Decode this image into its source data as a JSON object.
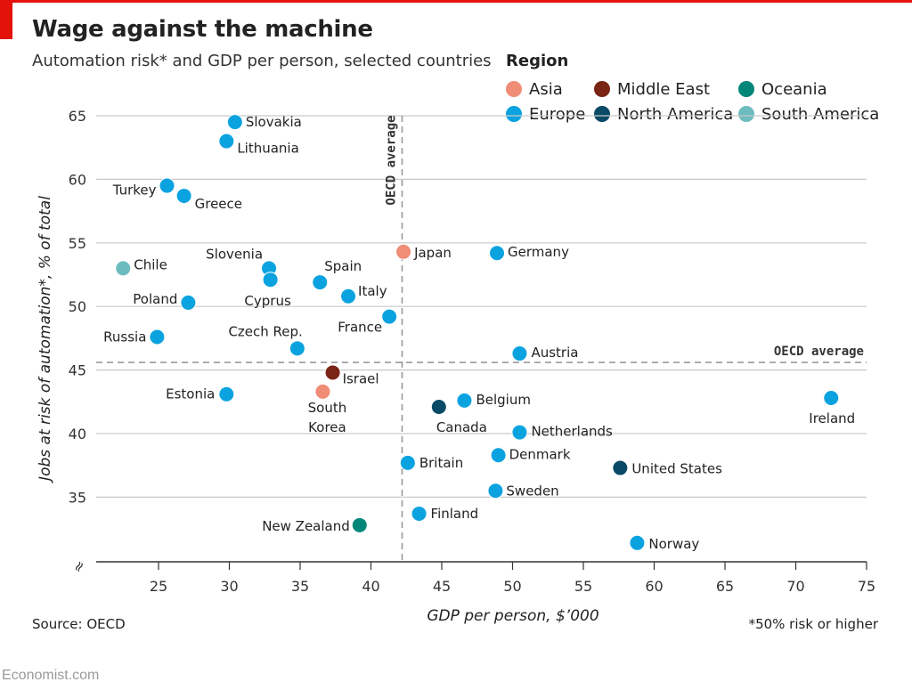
{
  "header": {
    "title": "Wage against the machine",
    "subtitle": "Automation risk* and GDP per person, selected countries"
  },
  "legend": {
    "title": "Region",
    "items": [
      {
        "label": "Asia",
        "color": "#ef8d77"
      },
      {
        "label": "Middle East",
        "color": "#7a2414"
      },
      {
        "label": "Oceania",
        "color": "#00877a"
      },
      {
        "label": "Europe",
        "color": "#0aa3e0"
      },
      {
        "label": "North America",
        "color": "#0a4a66"
      },
      {
        "label": "South America",
        "color": "#6cbcbf"
      }
    ]
  },
  "footer": {
    "source": "Source: OECD",
    "footnote": "*50% risk or higher",
    "brand": "Economist.com"
  },
  "chart_data": {
    "type": "scatter",
    "xlabel": "GDP per person, $’000",
    "ylabel": "Jobs at risk of automation*, % of total",
    "xlim": [
      22,
      75
    ],
    "ylim": [
      30,
      66
    ],
    "x_ticks": [
      "25",
      "30",
      "35",
      "40",
      "45",
      "50",
      "55",
      "60",
      "65",
      "70",
      "75"
    ],
    "y_ticks": [
      "35",
      "40",
      "45",
      "50",
      "55",
      "60",
      "65"
    ],
    "y_break_symbol": "≈",
    "grid": "horizontal",
    "reference_lines": [
      {
        "axis": "x",
        "value": 42.2,
        "label": "OECD average"
      },
      {
        "axis": "y",
        "value": 45.6,
        "label": "OECD average"
      }
    ],
    "points": [
      {
        "label": "Slovakia",
        "x": 30.4,
        "y": 64.5,
        "region": "Europe"
      },
      {
        "label": "Lithuania",
        "x": 29.8,
        "y": 63.0,
        "region": "Europe"
      },
      {
        "label": "Turkey",
        "x": 25.6,
        "y": 59.5,
        "region": "Europe"
      },
      {
        "label": "Greece",
        "x": 26.8,
        "y": 58.7,
        "region": "Europe"
      },
      {
        "label": "Chile",
        "x": 22.5,
        "y": 53.0,
        "region": "South America"
      },
      {
        "label": "Slovenia",
        "x": 32.8,
        "y": 53.0,
        "region": "Europe"
      },
      {
        "label": "Cyprus",
        "x": 32.9,
        "y": 52.1,
        "region": "Europe"
      },
      {
        "label": "Spain",
        "x": 36.4,
        "y": 51.9,
        "region": "Europe"
      },
      {
        "label": "Italy",
        "x": 38.4,
        "y": 50.8,
        "region": "Europe"
      },
      {
        "label": "Poland",
        "x": 27.1,
        "y": 50.3,
        "region": "Europe"
      },
      {
        "label": "France",
        "x": 41.3,
        "y": 49.2,
        "region": "Europe"
      },
      {
        "label": "Japan",
        "x": 42.3,
        "y": 54.3,
        "region": "Asia"
      },
      {
        "label": "Germany",
        "x": 48.9,
        "y": 54.2,
        "region": "Europe"
      },
      {
        "label": "Russia",
        "x": 24.9,
        "y": 47.6,
        "region": "Europe"
      },
      {
        "label": "Czech Rep.",
        "x": 34.8,
        "y": 46.7,
        "region": "Europe"
      },
      {
        "label": "Austria",
        "x": 50.5,
        "y": 46.3,
        "region": "Europe"
      },
      {
        "label": "Israel",
        "x": 37.3,
        "y": 44.8,
        "region": "Middle East"
      },
      {
        "label": "Estonia",
        "x": 29.8,
        "y": 43.1,
        "region": "Europe"
      },
      {
        "label": "South Korea",
        "x": 36.6,
        "y": 43.3,
        "region": "Asia"
      },
      {
        "label": "Belgium",
        "x": 46.6,
        "y": 42.6,
        "region": "Europe"
      },
      {
        "label": "Canada",
        "x": 44.8,
        "y": 42.1,
        "region": "North America"
      },
      {
        "label": "Ireland",
        "x": 72.5,
        "y": 42.8,
        "region": "Europe"
      },
      {
        "label": "Netherlands",
        "x": 50.5,
        "y": 40.1,
        "region": "Europe"
      },
      {
        "label": "Britain",
        "x": 42.6,
        "y": 37.7,
        "region": "Europe"
      },
      {
        "label": "Denmark",
        "x": 49.0,
        "y": 38.3,
        "region": "Europe"
      },
      {
        "label": "United States",
        "x": 57.6,
        "y": 37.3,
        "region": "North America"
      },
      {
        "label": "Sweden",
        "x": 48.8,
        "y": 35.5,
        "region": "Europe"
      },
      {
        "label": "Finland",
        "x": 43.4,
        "y": 33.7,
        "region": "Europe"
      },
      {
        "label": "New Zealand",
        "x": 39.2,
        "y": 32.8,
        "region": "Oceania"
      },
      {
        "label": "Norway",
        "x": 58.8,
        "y": 31.4,
        "region": "Europe"
      }
    ]
  }
}
